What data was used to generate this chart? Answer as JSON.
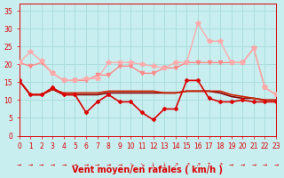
{
  "bg_color": "#c8eef0",
  "grid_color": "#aadddd",
  "xlabel": "Vent moyen/en rafales ( km/h )",
  "xlim": [
    0,
    23
  ],
  "ylim": [
    0,
    37
  ],
  "yticks": [
    0,
    5,
    10,
    15,
    20,
    25,
    30,
    35
  ],
  "xticks": [
    0,
    1,
    2,
    3,
    4,
    5,
    6,
    7,
    8,
    9,
    10,
    11,
    12,
    13,
    14,
    15,
    16,
    17,
    18,
    19,
    20,
    21,
    22,
    23
  ],
  "series": [
    {
      "data": [
        15.5,
        11.5,
        11.5,
        13.5,
        11.5,
        11.5,
        6.5,
        9.5,
        11.5,
        9.5,
        9.5,
        6.5,
        4.5,
        7.5,
        7.5,
        15.5,
        15.5,
        10.5,
        9.5,
        9.5,
        10.0,
        9.5,
        9.5,
        9.5
      ],
      "color": "#dd0000",
      "lw": 1.2,
      "marker": "D",
      "ms": 2.0,
      "zorder": 5
    },
    {
      "data": [
        15.5,
        11.5,
        11.5,
        13.0,
        11.5,
        11.5,
        11.5,
        11.5,
        12.0,
        12.0,
        12.0,
        12.0,
        12.0,
        12.0,
        12.0,
        12.5,
        12.5,
        12.5,
        12.0,
        11.0,
        10.5,
        10.5,
        10.0,
        10.0
      ],
      "color": "#880000",
      "lw": 1.2,
      "marker": null,
      "ms": 0,
      "zorder": 4
    },
    {
      "data": [
        15.5,
        11.5,
        11.5,
        13.0,
        12.0,
        12.0,
        12.0,
        12.0,
        12.5,
        12.5,
        12.5,
        12.5,
        12.5,
        12.0,
        12.0,
        12.5,
        12.5,
        12.5,
        12.5,
        11.5,
        11.0,
        10.5,
        10.0,
        10.0
      ],
      "color": "#cc2200",
      "lw": 1.2,
      "marker": null,
      "ms": 0,
      "zorder": 4
    },
    {
      "data": [
        20.5,
        19.5,
        20.5,
        17.5,
        15.5,
        15.5,
        15.5,
        17.0,
        17.0,
        19.5,
        19.5,
        17.5,
        17.5,
        19.0,
        19.0,
        20.5,
        20.5,
        20.5,
        20.5,
        20.5,
        20.5,
        24.5,
        13.5,
        11.5
      ],
      "color": "#ff8888",
      "lw": 1.0,
      "marker": "v",
      "ms": 3,
      "zorder": 3
    },
    {
      "data": [
        20.5,
        23.5,
        21.0,
        17.5,
        15.5,
        15.5,
        16.0,
        16.0,
        20.5,
        20.5,
        20.5,
        20.0,
        19.5,
        19.0,
        20.5,
        20.5,
        31.5,
        26.5,
        26.5,
        20.5,
        20.5,
        24.5,
        13.5,
        11.5
      ],
      "color": "#ffaaaa",
      "lw": 1.0,
      "marker": "*",
      "ms": 4,
      "zorder": 3
    }
  ],
  "wind_arrows": [
    "→",
    "→",
    "→",
    "→",
    "→",
    "→",
    "→",
    "→",
    "→",
    "→",
    "↘",
    "↘",
    "↓",
    "↓",
    "↗",
    "↗",
    "↗",
    "↑",
    "↗",
    "→",
    "→",
    "→",
    "→",
    "→"
  ],
  "tick_label_color": "#dd0000",
  "tick_fontsize": 5.5,
  "xlabel_fontsize": 7,
  "xlabel_color": "#dd0000",
  "ytick_fontsize": 5.5
}
